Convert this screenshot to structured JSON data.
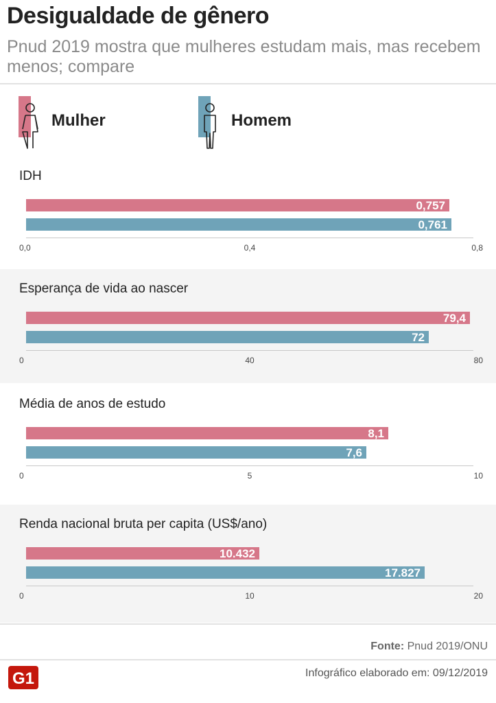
{
  "header": {
    "title": "Desigualdade de gênero",
    "subtitle": "Pnud 2019 mostra que mulheres estudam mais, mas recebem menos; compare"
  },
  "legend": [
    {
      "label": "Mulher",
      "color": "#d67789",
      "icon": "woman-icon"
    },
    {
      "label": "Homem",
      "color": "#6fa3b8",
      "icon": "man-icon"
    }
  ],
  "chart_data": [
    {
      "type": "bar",
      "title": "IDH",
      "series": [
        {
          "name": "Mulher",
          "value": 0.757,
          "label": "0,757",
          "color": "#d67789"
        },
        {
          "name": "Homem",
          "value": 0.761,
          "label": "0,761",
          "color": "#6fa3b8"
        }
      ],
      "xlim": [
        0,
        0.8
      ],
      "ticks": [
        "0,0",
        "0,4",
        "0,8"
      ],
      "shaded": false
    },
    {
      "type": "bar",
      "title": "Esperança de vida ao nascer",
      "series": [
        {
          "name": "Mulher",
          "value": 79.4,
          "label": "79,4",
          "color": "#d67789"
        },
        {
          "name": "Homem",
          "value": 72,
          "label": "72",
          "color": "#6fa3b8"
        }
      ],
      "xlim": [
        0,
        80
      ],
      "ticks": [
        "0",
        "40",
        "80"
      ],
      "shaded": true
    },
    {
      "type": "bar",
      "title": "Média de anos de estudo",
      "series": [
        {
          "name": "Mulher",
          "value": 8.1,
          "label": "8,1",
          "color": "#d67789"
        },
        {
          "name": "Homem",
          "value": 7.6,
          "label": "7,6",
          "color": "#6fa3b8"
        }
      ],
      "xlim": [
        0,
        10
      ],
      "ticks": [
        "0",
        "5",
        "10"
      ],
      "shaded": false
    },
    {
      "type": "bar",
      "title": "Renda nacional bruta per capita (US$/ano)",
      "series": [
        {
          "name": "Mulher",
          "value": 10.432,
          "label": "10.432",
          "color": "#d67789"
        },
        {
          "name": "Homem",
          "value": 17.827,
          "label": "17.827",
          "color": "#6fa3b8"
        }
      ],
      "xlim": [
        0,
        20
      ],
      "ticks": [
        "0",
        "10",
        "20"
      ],
      "shaded": true
    }
  ],
  "footer": {
    "source_label": "Fonte:",
    "source_value": "Pnud 2019/ONU",
    "credit": "Infográfico elaborado em: 09/12/2019",
    "logo_text": "G1",
    "logo_color": "#c4170c"
  }
}
